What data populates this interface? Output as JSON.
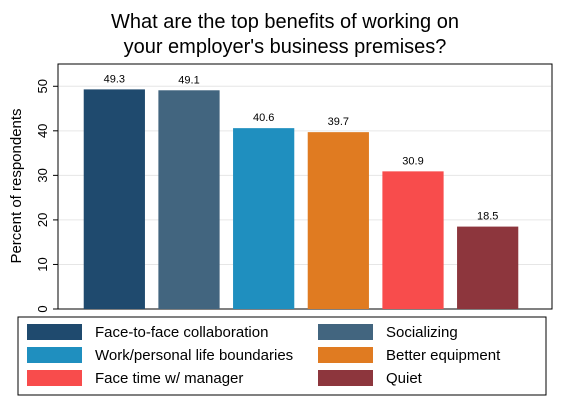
{
  "chart_data": {
    "type": "bar",
    "title": [
      "What are the top benefits of working on",
      "your employer's business premises?"
    ],
    "ylabel": "Percent of respondents",
    "xlabel": "",
    "ylim": [
      0,
      55
    ],
    "yticks": [
      "0",
      "10",
      "20",
      "30",
      "40",
      "50"
    ],
    "grid": true,
    "legend_position": "bottom",
    "categories": [
      "Face-to-face collaboration",
      "Socializing",
      "Work/personal life boundaries",
      "Better equipment",
      "Face time w/ manager",
      "Quiet"
    ],
    "values": [
      49.3,
      49.1,
      40.6,
      39.7,
      30.9,
      18.5
    ],
    "value_labels": [
      "49.3",
      "49.1",
      "40.6",
      "39.7",
      "30.9",
      "18.5"
    ],
    "colors": [
      "#1f4a6e",
      "#42657f",
      "#1f8fbf",
      "#e07b21",
      "#f84c4c",
      "#8d363d"
    ]
  }
}
